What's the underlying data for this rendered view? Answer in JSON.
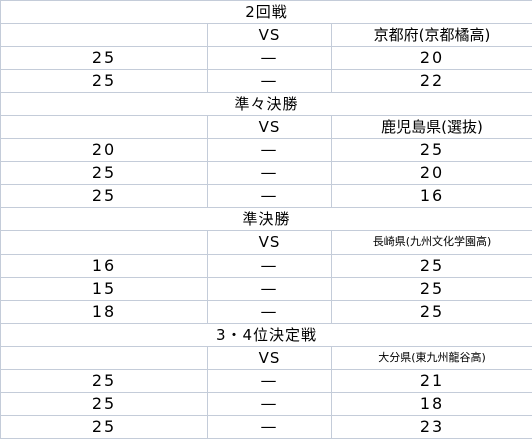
{
  "vs_label": "VS",
  "dash": "—",
  "rounds": [
    {
      "title": "2回戦",
      "opponent": "京都府(京都橘高)",
      "opponent_small": false,
      "sets": [
        [
          "25",
          "20"
        ],
        [
          "25",
          "22"
        ]
      ]
    },
    {
      "title": "準々決勝",
      "opponent": "鹿児島県(選抜)",
      "opponent_small": false,
      "sets": [
        [
          "20",
          "25"
        ],
        [
          "25",
          "20"
        ],
        [
          "25",
          "16"
        ]
      ]
    },
    {
      "title": "準決勝",
      "opponent": "長崎県(九州文化学園高)",
      "opponent_small": true,
      "sets": [
        [
          "16",
          "25"
        ],
        [
          "15",
          "25"
        ],
        [
          "18",
          "25"
        ]
      ]
    },
    {
      "title": "3・4位決定戦",
      "opponent": "大分県(東九州龍谷高)",
      "opponent_small": true,
      "sets": [
        [
          "25",
          "21"
        ],
        [
          "25",
          "18"
        ],
        [
          "25",
          "23"
        ]
      ]
    }
  ]
}
